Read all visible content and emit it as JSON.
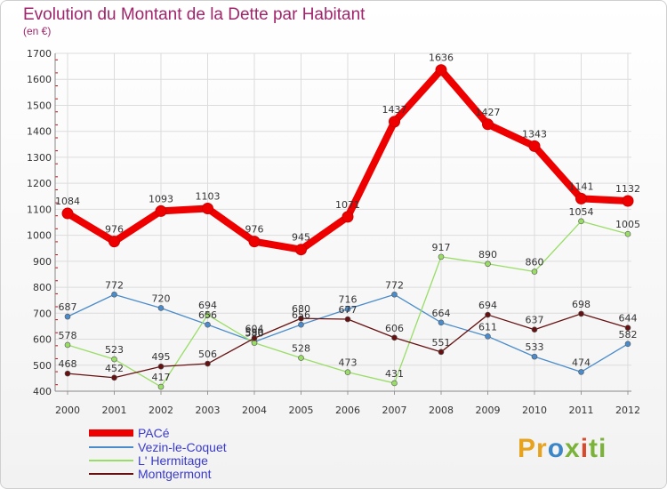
{
  "chart_data": {
    "type": "line",
    "title": "Evolution du Montant de la Dette par Habitant",
    "subtitle": "(en €)",
    "x": [
      "2000",
      "2001",
      "2002",
      "2003",
      "2004",
      "2005",
      "2006",
      "2007",
      "2008",
      "2009",
      "2010",
      "2011",
      "2012"
    ],
    "ylim": [
      400,
      1700
    ],
    "yticks": [
      400,
      500,
      600,
      700,
      800,
      900,
      1000,
      1100,
      1200,
      1300,
      1400,
      1500,
      1600,
      1700
    ],
    "grid": true,
    "legend_placement": "bottom-left",
    "series": [
      {
        "name": "PACé",
        "color": "#ee0000",
        "values": [
          1084,
          976,
          1093,
          1103,
          976,
          945,
          1071,
          1437,
          1636,
          1427,
          1343,
          1141,
          1132
        ]
      },
      {
        "name": "Vezin-le-Coquet",
        "color": "#4a8ccb",
        "values": [
          687,
          772,
          720,
          656,
          590,
          656,
          716,
          772,
          664,
          611,
          533,
          474,
          582
        ]
      },
      {
        "name": "L' Hermitage",
        "color": "#99dd66",
        "values": [
          578,
          523,
          417,
          694,
          586,
          528,
          473,
          431,
          917,
          890,
          860,
          1054,
          1005
        ]
      },
      {
        "name": "Montgermont",
        "color": "#661111",
        "values": [
          468,
          452,
          495,
          506,
          604,
          680,
          677,
          606,
          551,
          694,
          637,
          698,
          644
        ]
      }
    ]
  },
  "logo": {
    "text": "Proxiti",
    "letters": [
      "Pr",
      "o",
      "x",
      "i",
      "ti"
    ]
  },
  "colors": {
    "title": "#a0256b",
    "axis_text": "#333333",
    "grid": "#dddddd",
    "tick_mark": "#cc0000"
  }
}
